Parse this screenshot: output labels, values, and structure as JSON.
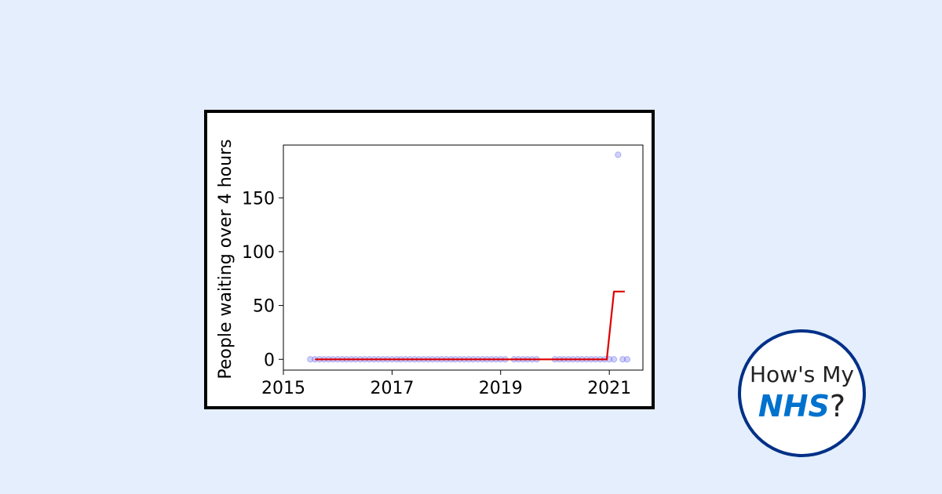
{
  "brand": {
    "line1": "How's My",
    "nhs": "NHS",
    "question_mark": "?",
    "nhs_color": "#0072ce",
    "ring_color": "#003087"
  },
  "chart_data": {
    "type": "line",
    "title": "",
    "xlabel": "",
    "ylabel": "People waiting over 4 hours",
    "xlim": [
      "2015-01-01",
      "2021-08-15"
    ],
    "ylim": [
      -10,
      199
    ],
    "xticks": [
      {
        "label": "2015",
        "date": "2015-01-01"
      },
      {
        "label": "2017",
        "date": "2017-01-01"
      },
      {
        "label": "2019",
        "date": "2019-01-01"
      },
      {
        "label": "2021",
        "date": "2021-01-01"
      }
    ],
    "yticks": [
      0,
      50,
      100,
      150
    ],
    "grid": false,
    "legend": "none",
    "series": [
      {
        "kind": "scatter",
        "color": "#7777ee",
        "points": [
          {
            "date": "2015-07-01",
            "value": 0
          },
          {
            "date": "2015-08-01",
            "value": 0
          },
          {
            "date": "2015-09-01",
            "value": 0
          },
          {
            "date": "2015-10-01",
            "value": 0
          },
          {
            "date": "2015-11-01",
            "value": 0
          },
          {
            "date": "2015-12-01",
            "value": 0
          },
          {
            "date": "2016-01-01",
            "value": 0
          },
          {
            "date": "2016-02-01",
            "value": 0
          },
          {
            "date": "2016-03-01",
            "value": 0
          },
          {
            "date": "2016-04-01",
            "value": 0
          },
          {
            "date": "2016-05-01",
            "value": 0
          },
          {
            "date": "2016-06-01",
            "value": 0
          },
          {
            "date": "2016-07-01",
            "value": 0
          },
          {
            "date": "2016-08-01",
            "value": 0
          },
          {
            "date": "2016-09-01",
            "value": 0
          },
          {
            "date": "2016-10-01",
            "value": 0
          },
          {
            "date": "2016-11-01",
            "value": 0
          },
          {
            "date": "2016-12-01",
            "value": 0
          },
          {
            "date": "2017-01-01",
            "value": 0
          },
          {
            "date": "2017-02-01",
            "value": 0
          },
          {
            "date": "2017-03-01",
            "value": 0
          },
          {
            "date": "2017-04-01",
            "value": 0
          },
          {
            "date": "2017-05-01",
            "value": 0
          },
          {
            "date": "2017-06-01",
            "value": 0
          },
          {
            "date": "2017-07-01",
            "value": 0
          },
          {
            "date": "2017-08-01",
            "value": 0
          },
          {
            "date": "2017-09-01",
            "value": 0
          },
          {
            "date": "2017-10-01",
            "value": 0
          },
          {
            "date": "2017-11-01",
            "value": 0
          },
          {
            "date": "2017-12-01",
            "value": 0
          },
          {
            "date": "2018-01-01",
            "value": 0
          },
          {
            "date": "2018-02-01",
            "value": 0
          },
          {
            "date": "2018-03-01",
            "value": 0
          },
          {
            "date": "2018-04-01",
            "value": 0
          },
          {
            "date": "2018-05-01",
            "value": 0
          },
          {
            "date": "2018-06-01",
            "value": 0
          },
          {
            "date": "2018-07-01",
            "value": 0
          },
          {
            "date": "2018-08-01",
            "value": 0
          },
          {
            "date": "2018-09-01",
            "value": 0
          },
          {
            "date": "2018-10-01",
            "value": 0
          },
          {
            "date": "2018-11-01",
            "value": 0
          },
          {
            "date": "2018-12-01",
            "value": 0
          },
          {
            "date": "2019-01-01",
            "value": 0
          },
          {
            "date": "2019-02-01",
            "value": 0
          },
          {
            "date": "2019-04-01",
            "value": 0
          },
          {
            "date": "2019-05-01",
            "value": 0
          },
          {
            "date": "2019-06-01",
            "value": 0
          },
          {
            "date": "2019-07-01",
            "value": 0
          },
          {
            "date": "2019-08-01",
            "value": 0
          },
          {
            "date": "2019-09-01",
            "value": 0
          },
          {
            "date": "2020-01-01",
            "value": 0
          },
          {
            "date": "2020-02-01",
            "value": 0
          },
          {
            "date": "2020-03-01",
            "value": 0
          },
          {
            "date": "2020-04-01",
            "value": 0
          },
          {
            "date": "2020-05-01",
            "value": 0
          },
          {
            "date": "2020-06-01",
            "value": 0
          },
          {
            "date": "2020-07-01",
            "value": 0
          },
          {
            "date": "2020-08-01",
            "value": 0
          },
          {
            "date": "2020-09-01",
            "value": 0
          },
          {
            "date": "2020-10-01",
            "value": 0
          },
          {
            "date": "2020-11-01",
            "value": 0
          },
          {
            "date": "2020-12-01",
            "value": 0
          },
          {
            "date": "2021-01-01",
            "value": 0
          },
          {
            "date": "2021-02-01",
            "value": 0
          },
          {
            "date": "2021-03-01",
            "value": 190
          },
          {
            "date": "2021-04-01",
            "value": 0
          },
          {
            "date": "2021-05-01",
            "value": 0
          }
        ]
      },
      {
        "kind": "line",
        "color": "#dd0000",
        "points": [
          {
            "date": "2015-08-01",
            "value": 0
          },
          {
            "date": "2020-12-15",
            "value": 0
          },
          {
            "date": "2021-02-01",
            "value": 63
          },
          {
            "date": "2021-04-15",
            "value": 63
          }
        ]
      }
    ]
  }
}
